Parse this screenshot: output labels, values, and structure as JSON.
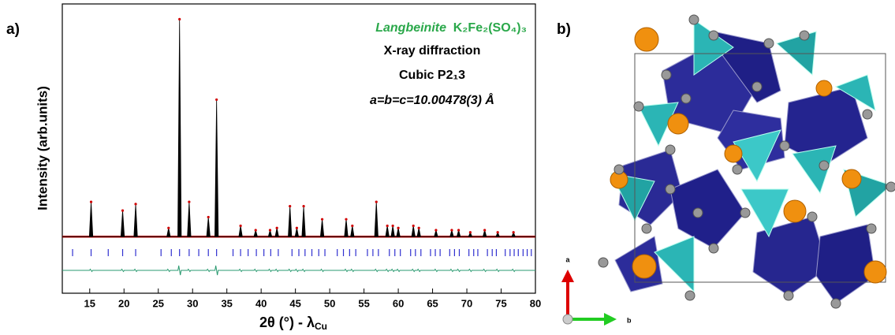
{
  "chart_data": {
    "type": "stick",
    "panel_label": "a)",
    "annotations": [
      "Langbeinite",
      "K₂Fe₂(SO₄)₃",
      "X-ray diffraction",
      "Cubic P2₁3",
      "a=b=c=10.00478(3) Å"
    ],
    "xlabel": "2θ (°) - λ",
    "xlabel_sub": "Cu",
    "ylabel": "Intensity (arb.units)",
    "x": [
      15.2,
      19.8,
      21.7,
      26.5,
      28.1,
      29.5,
      32.3,
      33.5,
      37.0,
      39.2,
      41.3,
      42.3,
      44.2,
      45.2,
      46.2,
      48.9,
      52.4,
      53.3,
      56.8,
      58.4,
      59.2,
      60.0,
      62.2,
      63.0,
      65.5,
      67.8,
      68.8,
      70.5,
      72.6,
      74.5,
      76.8
    ],
    "values": [
      16,
      12,
      15,
      4,
      100,
      16,
      9,
      63,
      5,
      3,
      3,
      4,
      14,
      4,
      14,
      8,
      8,
      5,
      16,
      5,
      5,
      4,
      5,
      4,
      3,
      3,
      3,
      2,
      3,
      2,
      2
    ],
    "color": "#000000",
    "fit_color": "#d00000",
    "bragg_positions": [
      12.5,
      15.2,
      17.7,
      19.8,
      21.7,
      25.4,
      26.9,
      28.1,
      29.5,
      30.9,
      32.3,
      33.5,
      35.9,
      37.0,
      38.1,
      39.3,
      40.4,
      41.4,
      42.5,
      44.5,
      45.5,
      46.4,
      47.4,
      48.4,
      49.3,
      51.1,
      52.0,
      52.9,
      53.8,
      55.5,
      56.3,
      57.1,
      58.7,
      59.5,
      60.3,
      61.8,
      62.5,
      63.3,
      64.7,
      65.4,
      66.1,
      67.5,
      68.2,
      68.9,
      70.3,
      71.0,
      71.6,
      73.0,
      73.7,
      74.3,
      75.6,
      76.3,
      76.9,
      77.5,
      78.2,
      78.8,
      79.4
    ],
    "bragg_color": "#3030d0",
    "diff_color": "#2a9a70",
    "xlim": [
      11,
      80
    ],
    "xticks": [
      15,
      20,
      25,
      30,
      35,
      40,
      45,
      50,
      55,
      60,
      65,
      70,
      75,
      80
    ],
    "ylim": [
      -26,
      107
    ]
  },
  "structure": {
    "panel_label": "b)",
    "axis_labels": [
      "a",
      "b"
    ]
  }
}
